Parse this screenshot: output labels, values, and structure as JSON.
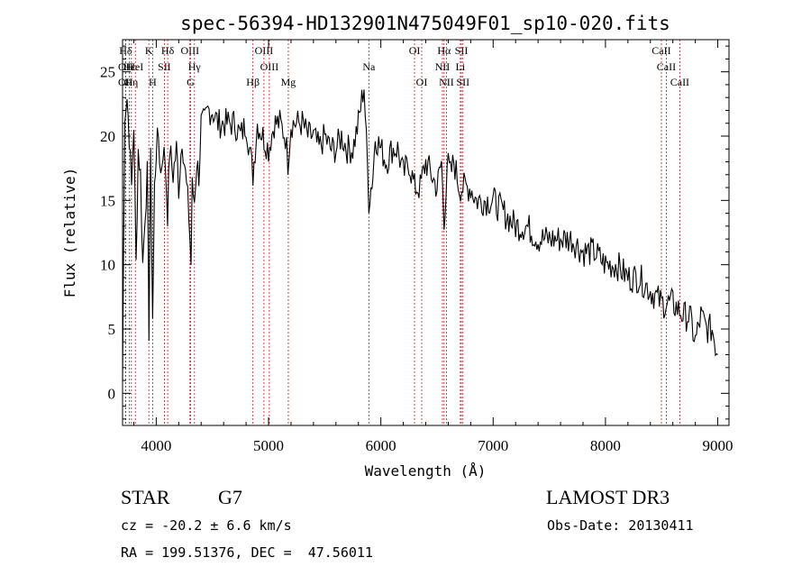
{
  "chart_data": {
    "type": "line",
    "title": "spec-56394-HD132901N475049F01_sp10-020.fits",
    "xlabel": "Wavelength (Å)",
    "ylabel": "Flux (relative)",
    "xlim": [
      3700,
      9100
    ],
    "ylim": [
      -2.5,
      27.5
    ],
    "xticks": [
      4000,
      5000,
      6000,
      7000,
      8000,
      9000
    ],
    "yticks": [
      0,
      5,
      10,
      15,
      20,
      25
    ],
    "grid": false,
    "series": [
      {
        "x": [
          3700,
          3720,
          3740,
          3760,
          3780,
          3800,
          3820,
          3840,
          3860,
          3880,
          3900,
          3920,
          3935,
          3950,
          3968,
          3985,
          4000,
          4020,
          4040,
          4060,
          4080,
          4101,
          4120,
          4150,
          4180,
          4200,
          4230,
          4260,
          4290,
          4310,
          4320,
          4340,
          4360,
          4380,
          4400,
          4430,
          4460,
          4500,
          4550,
          4600,
          4650,
          4700,
          4750,
          4800,
          4861,
          4900,
          4950,
          5000,
          5050,
          5100,
          5150,
          5172,
          5200,
          5250,
          5300,
          5350,
          5400,
          5450,
          5500,
          5550,
          5600,
          5650,
          5700,
          5750,
          5800,
          5850,
          5893,
          5930,
          5950,
          6000,
          6050,
          6100,
          6150,
          6200,
          6250,
          6300,
          6350,
          6400,
          6450,
          6500,
          6540,
          6563,
          6590,
          6620,
          6650,
          6700,
          6750,
          6800,
          6850,
          6900,
          6950,
          7000,
          7100,
          7200,
          7300,
          7400,
          7500,
          7600,
          7700,
          7800,
          7900,
          8000,
          8100,
          8200,
          8300,
          8400,
          8500,
          8600,
          8700,
          8750,
          8800,
          8850,
          8900,
          8950,
          9000
        ],
        "values": [
          1,
          22,
          23,
          20,
          16,
          21,
          10,
          19,
          17,
          10,
          14,
          17,
          5,
          18,
          6,
          16,
          19,
          20,
          17,
          19,
          18,
          14,
          19,
          17,
          19,
          16,
          20,
          17,
          14,
          10,
          16,
          15,
          18,
          17,
          21,
          21,
          22,
          22,
          21,
          21,
          21,
          21,
          20,
          21,
          17,
          21,
          20,
          19,
          21,
          21,
          20,
          18,
          21,
          21,
          21,
          20,
          20,
          19,
          20,
          19,
          19,
          20,
          19,
          19,
          21,
          24,
          15,
          17,
          20,
          19,
          18,
          19,
          19,
          17,
          18,
          16,
          16,
          18,
          17,
          16,
          18,
          13,
          18,
          17,
          18,
          16,
          16,
          16,
          15,
          15,
          15,
          15,
          14,
          13,
          13,
          12,
          12,
          12,
          12,
          11,
          11,
          10,
          10,
          9,
          9,
          8,
          7,
          7,
          6,
          6,
          4,
          6,
          5,
          5,
          3
        ]
      }
    ],
    "line_markers": [
      {
        "label": "Hδ",
        "wl": 3727,
        "row": 0
      },
      {
        "label": "OII",
        "wl": 3727,
        "row": 1
      },
      {
        "label": "OII",
        "wl": 3727,
        "row": 2
      },
      {
        "label": "Hε",
        "wl": 3761,
        "row": 1
      },
      {
        "label": "Hη",
        "wl": 3779,
        "row": 2
      },
      {
        "label": "HeI",
        "wl": 3814,
        "row": 1
      },
      {
        "label": "K",
        "wl": 3934,
        "row": 0
      },
      {
        "label": "H",
        "wl": 3968,
        "row": 2
      },
      {
        "label": "SII",
        "wl": 4072,
        "row": 1
      },
      {
        "label": "Hδ",
        "wl": 4102,
        "row": 0
      },
      {
        "label": "OIII",
        "wl": 4300,
        "row": 0
      },
      {
        "label": "Hγ",
        "wl": 4340,
        "row": 1
      },
      {
        "label": "G",
        "wl": 4305,
        "row": 2
      },
      {
        "label": "Hβ",
        "wl": 4861,
        "row": 2
      },
      {
        "label": "OIII",
        "wl": 4959,
        "row": 0
      },
      {
        "label": "OIII",
        "wl": 5007,
        "row": 1
      },
      {
        "label": "Mg",
        "wl": 5176,
        "row": 2
      },
      {
        "label": "Na",
        "wl": 5893,
        "row": 1
      },
      {
        "label": "OI",
        "wl": 6300,
        "row": 0
      },
      {
        "label": "OI",
        "wl": 6364,
        "row": 2
      },
      {
        "label": "Hα",
        "wl": 6563,
        "row": 0
      },
      {
        "label": "NII",
        "wl": 6548,
        "row": 1
      },
      {
        "label": "NII",
        "wl": 6584,
        "row": 2
      },
      {
        "label": "SII",
        "wl": 6717,
        "row": 0
      },
      {
        "label": "Li",
        "wl": 6708,
        "row": 1
      },
      {
        "label": "SII",
        "wl": 6731,
        "row": 2
      },
      {
        "label": "CaII",
        "wl": 8498,
        "row": 0
      },
      {
        "label": "CaII",
        "wl": 8542,
        "row": 1
      },
      {
        "label": "CaII",
        "wl": 8662,
        "row": 2
      }
    ],
    "colors": {
      "spectrum": "#000000",
      "marker_lines": "#b22222",
      "axes": "#000000"
    }
  },
  "info": {
    "object_class": "STAR",
    "subclass": "G7",
    "survey": "LAMOST DR3",
    "redshift": "cz = -20.2 ± 6.6 km/s",
    "obs_date": "Obs-Date: 20130411",
    "coords": "RA = 199.51376, DEC =  47.56011"
  }
}
